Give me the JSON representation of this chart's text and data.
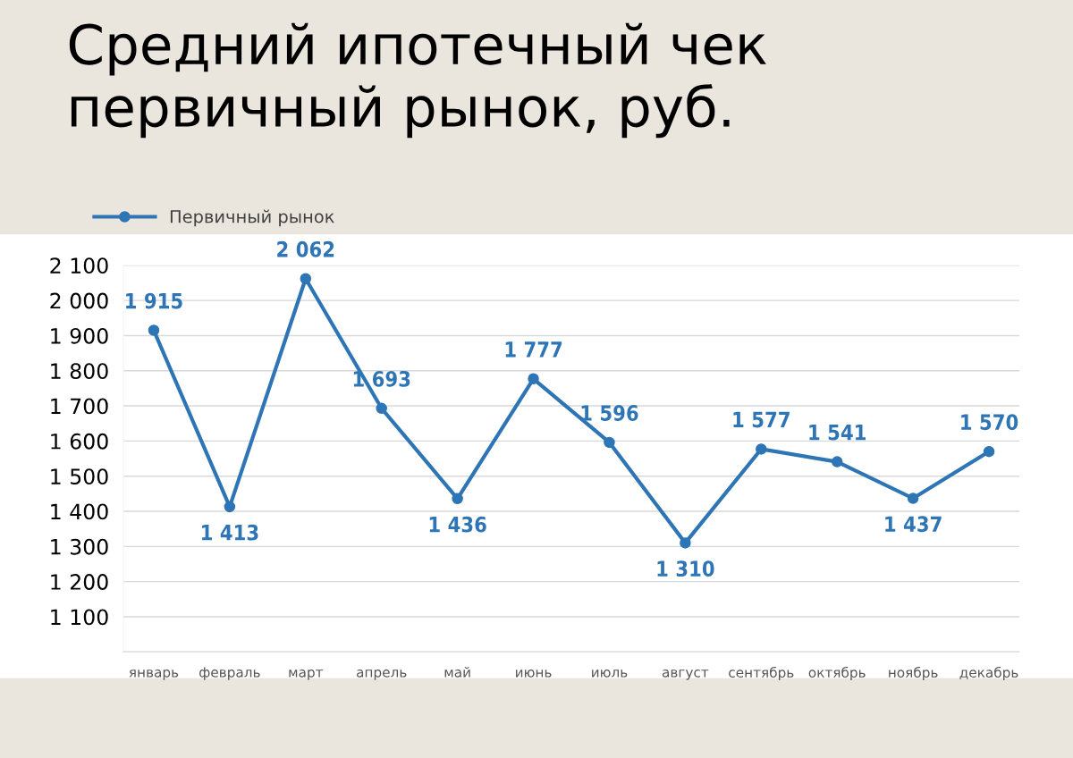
{
  "chart_data": {
    "type": "line",
    "title": "Средний ипотечный чек\nпервичный рынок, руб.",
    "categories": [
      "январь",
      "февраль",
      "март",
      "апрель",
      "май",
      "июнь",
      "июль",
      "август",
      "сентябрь",
      "октябрь",
      "ноябрь",
      "декабрь"
    ],
    "series": [
      {
        "name": "Первичный рынок",
        "color": "#2e75b6",
        "values": [
          1915,
          1413,
          2062,
          1693,
          1436,
          1777,
          1596,
          1310,
          1577,
          1541,
          1437,
          1570
        ]
      }
    ],
    "ylim": [
      1000,
      2100
    ],
    "yticks": [
      {
        "value": 1000,
        "label": null
      },
      {
        "value": 1100,
        "label": "1 100"
      },
      {
        "value": 1200,
        "label": "1 200"
      },
      {
        "value": 1300,
        "label": "1 300"
      },
      {
        "value": 1400,
        "label": "1 400"
      },
      {
        "value": 1500,
        "label": "1 500"
      },
      {
        "value": 1600,
        "label": "1 600"
      },
      {
        "value": 1700,
        "label": "1 700"
      },
      {
        "value": 1800,
        "label": "1 800"
      },
      {
        "value": 1900,
        "label": "1 900"
      },
      {
        "value": 2000,
        "label": "2 000"
      },
      {
        "value": 2100,
        "label": "2 100"
      }
    ],
    "value_labels": [
      "1 915",
      "1 413",
      "2 062",
      "1 693",
      "1 436",
      "1 777",
      "1 596",
      "1 310",
      "1 577",
      "1 541",
      "1 437",
      "1 570"
    ],
    "grid": "y",
    "legend": "top left",
    "marker": "circle",
    "line_style": "solid"
  }
}
